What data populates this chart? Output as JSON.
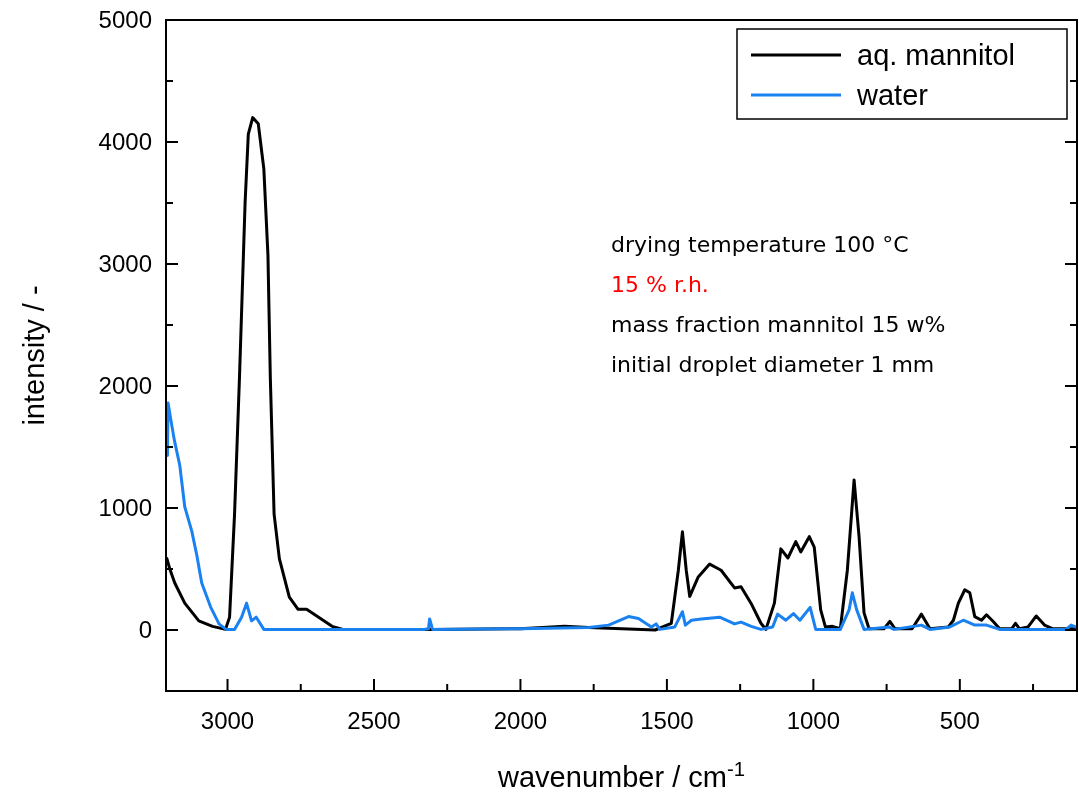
{
  "chart_data": {
    "type": "line",
    "xlabel": "wavenumber / cm$^{-1}$",
    "ylabel": "intensity / -",
    "xlim": [
      3210,
      100
    ],
    "ylim": [
      -500,
      5000
    ],
    "xticks": [
      3000,
      {
        "value": 2750,
        "label": null
      },
      2500,
      {
        "value": 2250,
        "label": null
      },
      2000,
      {
        "value": 1750,
        "label": null
      },
      1500,
      {
        "value": 1250,
        "label": null
      },
      1000,
      {
        "value": 750,
        "label": null
      },
      500,
      {
        "value": 250,
        "label": null
      }
    ],
    "yticks": [
      {
        "value": -500,
        "label": null
      },
      0,
      {
        "value": 500,
        "label": null
      },
      1000,
      {
        "value": 1500,
        "label": null
      },
      2000,
      {
        "value": 2500,
        "label": null
      },
      3000,
      {
        "value": 3500,
        "label": null
      },
      4000,
      {
        "value": 4500,
        "label": null
      },
      5000
    ],
    "legend": "top right",
    "grid": false,
    "marker": "none",
    "line_style": "solid",
    "annotations": [
      "drying temperature 100 °C",
      "15 % r.h.",
      "mass fraction mannitol 15 w%",
      "initial droplet diameter 1 mm"
    ],
    "series": [
      {
        "name": "aq. mannitol",
        "color": "#000000",
        "x": [
          3207,
          3197,
          3180,
          3146,
          3098,
          3051,
          3007,
          2993,
          2976,
          2959,
          2940,
          2929,
          2914,
          2895,
          2876,
          2862,
          2854,
          2841,
          2823,
          2789,
          2759,
          2730,
          2689,
          2643,
          2606,
          2300,
          2000,
          1850,
          1767,
          1540,
          1485,
          1461,
          1447,
          1434,
          1422,
          1393,
          1354,
          1315,
          1269,
          1247,
          1213,
          1179,
          1162,
          1133,
          1111,
          1087,
          1060,
          1043,
          1014,
          997,
          975,
          959,
          935,
          908,
          884,
          861,
          844,
          827,
          810,
          759,
          739,
          721,
          663,
          631,
          602,
          539,
          522,
          505,
          483,
          466,
          449,
          426,
          409,
          386,
          364,
          323,
          310,
          296,
          267,
          239,
          211,
          182,
          106
        ],
        "values": [
          585,
          500,
          385,
          220,
          75,
          30,
          5,
          105,
          950,
          2080,
          3500,
          4065,
          4200,
          4150,
          3780,
          3075,
          2080,
          950,
          585,
          270,
          170,
          170,
          105,
          30,
          5,
          5,
          10,
          30,
          20,
          0,
          55,
          490,
          805,
          490,
          275,
          435,
          540,
          490,
          345,
          355,
          220,
          55,
          5,
          220,
          665,
          590,
          725,
          640,
          765,
          680,
          165,
          25,
          30,
          10,
          490,
          1230,
          765,
          140,
          10,
          10,
          70,
          10,
          10,
          130,
          10,
          25,
          80,
          220,
          330,
          305,
          110,
          80,
          125,
          70,
          10,
          10,
          55,
          10,
          25,
          115,
          40,
          10,
          10
        ]
      },
      {
        "name": "water",
        "color": "#1a82f0",
        "x": [
          3205,
          3203,
          3193,
          3181,
          3163,
          3146,
          3122,
          3105,
          3088,
          3058,
          3029,
          3005,
          2976,
          2952,
          2935,
          2918,
          2902,
          2876,
          2330,
          2314,
          2310,
          2300,
          2000,
          1767,
          1699,
          1631,
          1597,
          1553,
          1537,
          1524,
          1473,
          1447,
          1437,
          1416,
          1382,
          1320,
          1269,
          1247,
          1212,
          1179,
          1139,
          1122,
          1094,
          1068,
          1046,
          1011,
          992,
          908,
          878,
          867,
          852,
          827,
          742,
          725,
          631,
          602,
          534,
          488,
          449,
          409,
          364,
          137,
          120,
          106
        ],
        "values": [
          1430,
          1860,
          1715,
          1550,
          1350,
          1010,
          810,
          615,
          385,
          190,
          50,
          5,
          5,
          105,
          220,
          75,
          105,
          5,
          5,
          10,
          90,
          5,
          10,
          20,
          40,
          110,
          95,
          25,
          50,
          5,
          25,
          150,
          40,
          80,
          90,
          105,
          50,
          65,
          30,
          5,
          25,
          130,
          80,
          135,
          80,
          185,
          5,
          5,
          165,
          305,
          165,
          5,
          25,
          5,
          40,
          5,
          25,
          80,
          40,
          40,
          5,
          5,
          40,
          25
        ]
      }
    ]
  }
}
